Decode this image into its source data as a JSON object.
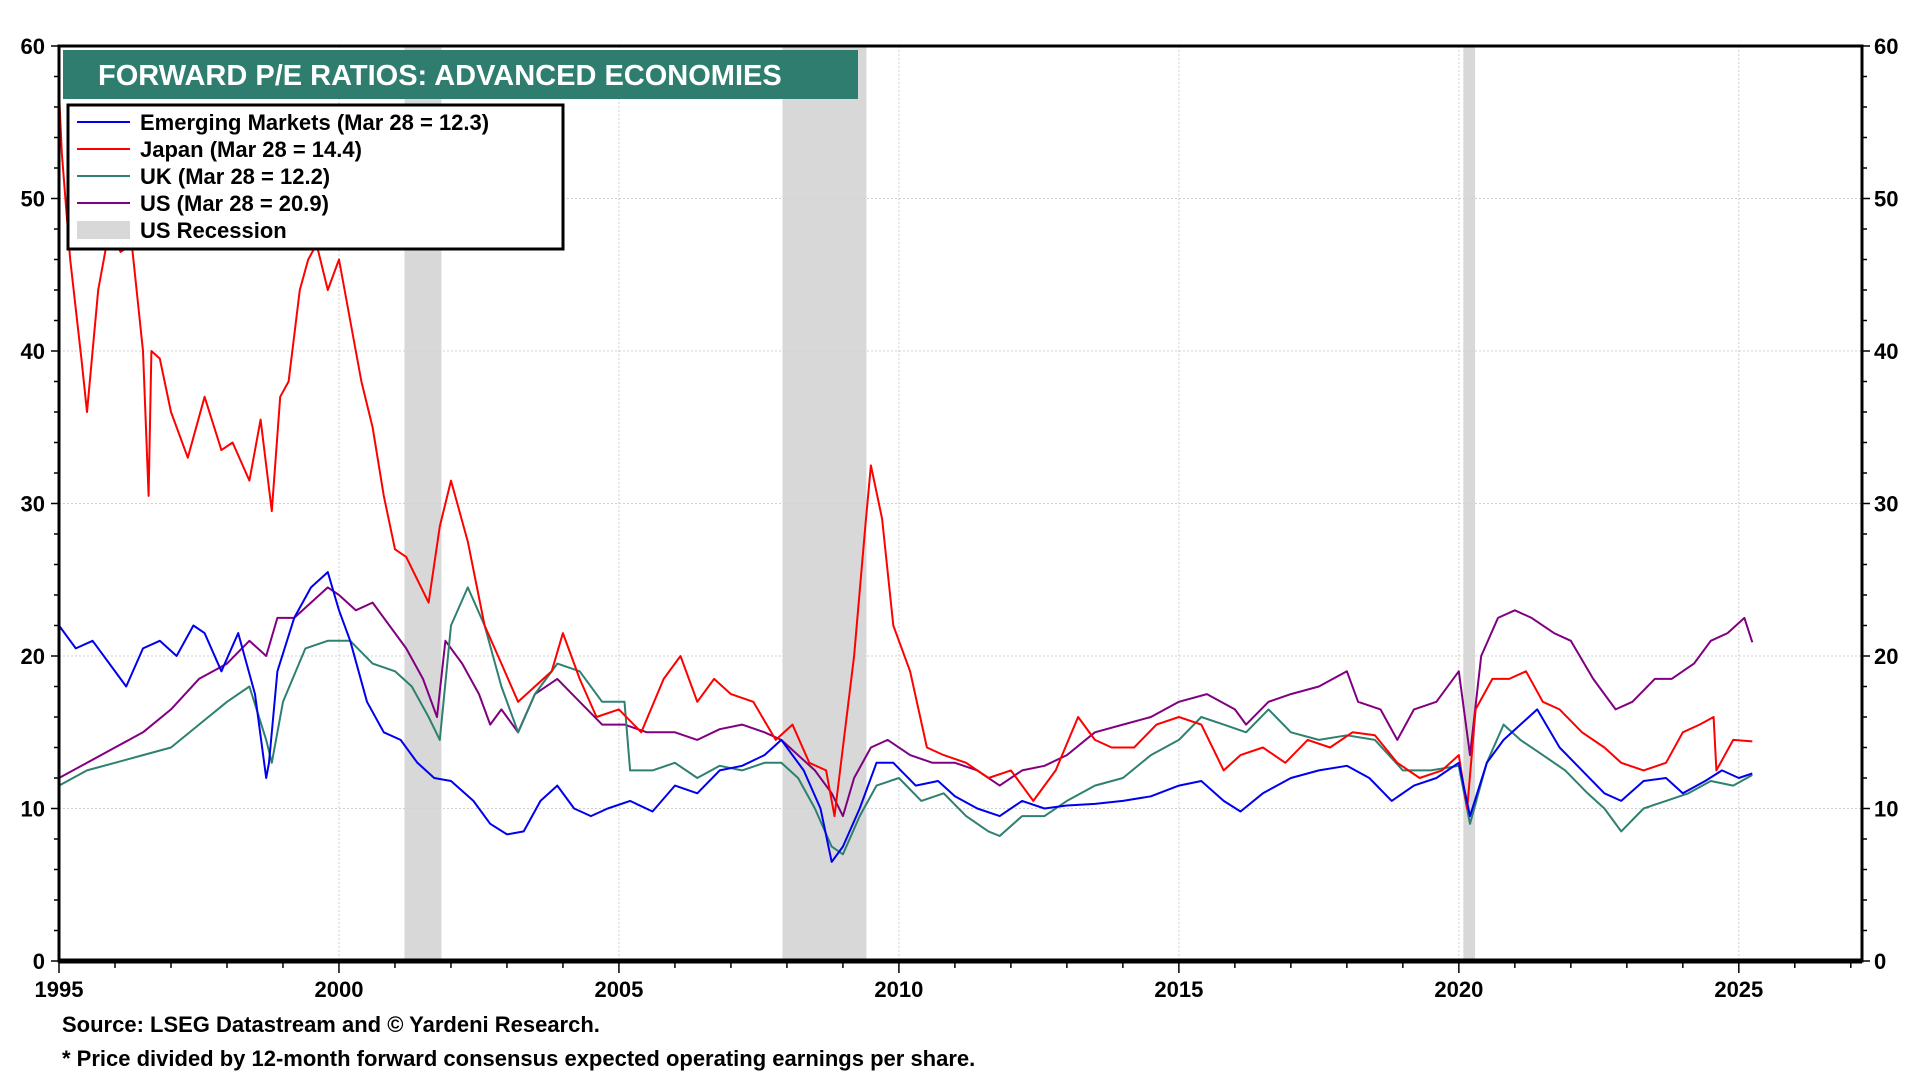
{
  "chart_data": {
    "type": "line",
    "title": "FORWARD P/E RATIOS: ADVANCED ECONOMIES",
    "xlabel": "",
    "ylabel": "",
    "xlim": [
      1995,
      2027.2
    ],
    "ylim": [
      0,
      60
    ],
    "y_ticks": [
      0,
      10,
      20,
      30,
      40,
      50,
      60
    ],
    "x_ticks": [
      1995,
      2000,
      2005,
      2010,
      2015,
      2020,
      2025
    ],
    "grid": true,
    "dual_y_axis": true,
    "legend_position": "top-left",
    "title_banner_color": "#2e7d6e",
    "recessions": [
      {
        "start": 2001.17,
        "end": 2001.83
      },
      {
        "start": 2007.92,
        "end": 2009.42
      },
      {
        "start": 2020.08,
        "end": 2020.29
      }
    ],
    "recession_label": "US Recession",
    "recession_color": "#d8d8d8",
    "series": [
      {
        "name": "Emerging Markets (Mar 28 = 12.3)",
        "color": "#0000ee",
        "x": [
          1995.0,
          1995.3,
          1995.6,
          1995.9,
          1996.2,
          1996.5,
          1996.8,
          1997.1,
          1997.4,
          1997.6,
          1997.9,
          1998.2,
          1998.5,
          1998.7,
          1998.75,
          1998.9,
          1999.2,
          1999.5,
          1999.8,
          2000.0,
          2000.2,
          2000.5,
          2000.8,
          2001.1,
          2001.4,
          2001.7,
          2002.0,
          2002.4,
          2002.7,
          2003.0,
          2003.3,
          2003.6,
          2003.9,
          2004.2,
          2004.5,
          2004.8,
          2005.2,
          2005.6,
          2006.0,
          2006.4,
          2006.8,
          2007.2,
          2007.6,
          2007.9,
          2008.3,
          2008.6,
          2008.8,
          2009.0,
          2009.3,
          2009.6,
          2009.9,
          2010.3,
          2010.7,
          2011.0,
          2011.4,
          2011.8,
          2012.2,
          2012.6,
          2013.0,
          2013.5,
          2014.0,
          2014.5,
          2015.0,
          2015.4,
          2015.8,
          2016.1,
          2016.5,
          2017.0,
          2017.5,
          2018.0,
          2018.4,
          2018.8,
          2019.2,
          2019.6,
          2020.0,
          2020.2,
          2020.5,
          2020.8,
          2021.1,
          2021.4,
          2021.8,
          2022.2,
          2022.6,
          2022.9,
          2023.3,
          2023.7,
          2024.0,
          2024.4,
          2024.7,
          2025.0,
          2025.24
        ],
        "values": [
          22.0,
          20.5,
          21.0,
          19.5,
          18.0,
          20.5,
          21.0,
          20.0,
          22.0,
          21.5,
          19.0,
          21.5,
          17.5,
          12.0,
          13.0,
          19.0,
          22.5,
          24.5,
          25.5,
          23.0,
          21.0,
          17.0,
          15.0,
          14.5,
          13.0,
          12.0,
          11.8,
          10.5,
          9.0,
          8.3,
          8.5,
          10.5,
          11.5,
          10.0,
          9.5,
          10.0,
          10.5,
          9.8,
          11.5,
          11.0,
          12.5,
          12.8,
          13.5,
          14.5,
          12.5,
          10.0,
          6.5,
          7.5,
          10.0,
          13.0,
          13.0,
          11.5,
          11.8,
          10.8,
          10.0,
          9.5,
          10.5,
          10.0,
          10.2,
          10.3,
          10.5,
          10.8,
          11.5,
          11.8,
          10.5,
          9.8,
          11.0,
          12.0,
          12.5,
          12.8,
          12.0,
          10.5,
          11.5,
          12.0,
          13.0,
          9.5,
          13.0,
          14.5,
          15.5,
          16.5,
          14.0,
          12.5,
          11.0,
          10.5,
          11.8,
          12.0,
          11.0,
          11.8,
          12.5,
          12.0,
          12.3
        ]
      },
      {
        "name": "Japan (Mar 28 = 14.4)",
        "color": "#ff0000",
        "x": [
          1995.0,
          1995.05,
          1995.2,
          1995.4,
          1995.5,
          1995.7,
          1995.9,
          1996.1,
          1996.3,
          1996.5,
          1996.6,
          1996.65,
          1996.8,
          1997.0,
          1997.3,
          1997.6,
          1997.9,
          1998.1,
          1998.4,
          1998.6,
          1998.8,
          1998.95,
          1999.1,
          1999.3,
          1999.45,
          1999.6,
          1999.8,
          2000.0,
          2000.2,
          2000.4,
          2000.6,
          2000.8,
          2001.0,
          2001.2,
          2001.4,
          2001.6,
          2001.8,
          2002.0,
          2002.3,
          2002.6,
          2002.9,
          2003.2,
          2003.5,
          2003.8,
          2004.0,
          2004.3,
          2004.6,
          2005.0,
          2005.4,
          2005.8,
          2006.1,
          2006.4,
          2006.7,
          2007.0,
          2007.4,
          2007.8,
          2008.1,
          2008.4,
          2008.7,
          2008.85,
          2009.0,
          2009.2,
          2009.4,
          2009.5,
          2009.7,
          2009.9,
          2010.2,
          2010.5,
          2010.8,
          2011.2,
          2011.6,
          2012.0,
          2012.4,
          2012.8,
          2013.2,
          2013.5,
          2013.8,
          2014.2,
          2014.6,
          2015.0,
          2015.4,
          2015.8,
          2016.1,
          2016.5,
          2016.9,
          2017.3,
          2017.7,
          2018.1,
          2018.5,
          2018.9,
          2019.3,
          2019.7,
          2020.0,
          2020.15,
          2020.3,
          2020.6,
          2020.9,
          2021.2,
          2021.5,
          2021.8,
          2022.2,
          2022.6,
          2022.9,
          2023.3,
          2023.7,
          2024.0,
          2024.3,
          2024.55,
          2024.6,
          2024.9,
          2025.24
        ],
        "values": [
          57.0,
          53.0,
          46.0,
          39.5,
          36.0,
          44.0,
          48.0,
          46.5,
          47.0,
          40.0,
          30.5,
          40.0,
          39.5,
          36.0,
          33.0,
          37.0,
          33.5,
          34.0,
          31.5,
          35.5,
          29.5,
          37.0,
          38.0,
          44.0,
          46.0,
          47.0,
          44.0,
          46.0,
          42.0,
          38.0,
          35.0,
          30.5,
          27.0,
          26.5,
          25.0,
          23.5,
          28.5,
          31.5,
          27.5,
          22.0,
          19.5,
          17.0,
          18.0,
          19.0,
          21.5,
          18.5,
          16.0,
          16.5,
          15.0,
          18.5,
          20.0,
          17.0,
          18.5,
          17.5,
          17.0,
          14.5,
          15.5,
          13.0,
          12.5,
          9.5,
          14.0,
          20.0,
          28.5,
          32.5,
          29.0,
          22.0,
          19.0,
          14.0,
          13.5,
          13.0,
          12.0,
          12.5,
          10.5,
          12.5,
          16.0,
          14.5,
          14.0,
          14.0,
          15.5,
          16.0,
          15.5,
          12.5,
          13.5,
          14.0,
          13.0,
          14.5,
          14.0,
          15.0,
          14.8,
          13.0,
          12.0,
          12.5,
          13.5,
          10.0,
          16.5,
          18.5,
          18.5,
          19.0,
          17.0,
          16.5,
          15.0,
          14.0,
          13.0,
          12.5,
          13.0,
          15.0,
          15.5,
          16.0,
          12.5,
          14.5,
          14.4
        ]
      },
      {
        "name": "UK (Mar 28 = 12.2)",
        "color": "#2e8070",
        "x": [
          1995.0,
          1995.5,
          1996.0,
          1996.5,
          1997.0,
          1997.5,
          1998.0,
          1998.4,
          1998.7,
          1998.8,
          1999.0,
          1999.4,
          1999.8,
          2000.2,
          2000.6,
          2001.0,
          2001.3,
          2001.6,
          2001.8,
          2002.0,
          2002.3,
          2002.6,
          2002.9,
          2003.2,
          2003.5,
          2003.9,
          2004.3,
          2004.7,
          2005.1,
          2005.2,
          2005.6,
          2006.0,
          2006.4,
          2006.8,
          2007.2,
          2007.6,
          2007.9,
          2008.2,
          2008.5,
          2008.8,
          2009.0,
          2009.3,
          2009.6,
          2010.0,
          2010.4,
          2010.8,
          2011.2,
          2011.6,
          2011.8,
          2012.2,
          2012.6,
          2013.0,
          2013.5,
          2014.0,
          2014.5,
          2015.0,
          2015.4,
          2015.8,
          2016.2,
          2016.6,
          2017.0,
          2017.5,
          2018.0,
          2018.5,
          2019.0,
          2019.5,
          2020.0,
          2020.2,
          2020.5,
          2020.8,
          2021.1,
          2021.5,
          2021.9,
          2022.3,
          2022.6,
          2022.9,
          2023.3,
          2023.7,
          2024.1,
          2024.5,
          2024.9,
          2025.24
        ],
        "values": [
          11.5,
          12.5,
          13.0,
          13.5,
          14.0,
          15.5,
          17.0,
          18.0,
          14.5,
          13.0,
          17.0,
          20.5,
          21.0,
          21.0,
          19.5,
          19.0,
          18.0,
          16.0,
          14.5,
          22.0,
          24.5,
          22.0,
          18.0,
          15.0,
          17.5,
          19.5,
          19.0,
          17.0,
          17.0,
          12.5,
          12.5,
          13.0,
          12.0,
          12.8,
          12.5,
          13.0,
          13.0,
          12.0,
          10.0,
          7.5,
          7.0,
          9.5,
          11.5,
          12.0,
          10.5,
          11.0,
          9.5,
          8.5,
          8.2,
          9.5,
          9.5,
          10.5,
          11.5,
          12.0,
          13.5,
          14.5,
          16.0,
          15.5,
          15.0,
          16.5,
          15.0,
          14.5,
          14.8,
          14.5,
          12.5,
          12.5,
          12.8,
          9.0,
          13.0,
          15.5,
          14.5,
          13.5,
          12.5,
          11.0,
          10.0,
          8.5,
          10.0,
          10.5,
          11.0,
          11.8,
          11.5,
          12.2
        ]
      },
      {
        "name": "US (Mar 28 = 20.9)",
        "color": "#800080",
        "x": [
          1995.0,
          1995.5,
          1996.0,
          1996.5,
          1997.0,
          1997.5,
          1998.0,
          1998.4,
          1998.7,
          1998.9,
          1999.2,
          1999.5,
          1999.8,
          2000.0,
          2000.3,
          2000.6,
          2000.9,
          2001.2,
          2001.5,
          2001.75,
          2001.9,
          2002.2,
          2002.5,
          2002.7,
          2002.9,
          2003.2,
          2003.5,
          2003.9,
          2004.3,
          2004.7,
          2005.1,
          2005.5,
          2006.0,
          2006.4,
          2006.8,
          2007.2,
          2007.6,
          2007.9,
          2008.2,
          2008.5,
          2008.8,
          2009.0,
          2009.2,
          2009.5,
          2009.8,
          2010.2,
          2010.6,
          2011.0,
          2011.4,
          2011.8,
          2012.2,
          2012.6,
          2013.0,
          2013.5,
          2014.0,
          2014.5,
          2015.0,
          2015.5,
          2016.0,
          2016.2,
          2016.6,
          2017.0,
          2017.5,
          2018.0,
          2018.2,
          2018.6,
          2018.9,
          2019.2,
          2019.6,
          2020.0,
          2020.2,
          2020.4,
          2020.7,
          2021.0,
          2021.3,
          2021.7,
          2022.0,
          2022.4,
          2022.8,
          2023.1,
          2023.5,
          2023.8,
          2024.2,
          2024.5,
          2024.8,
          2025.1,
          2025.24
        ],
        "values": [
          12.0,
          13.0,
          14.0,
          15.0,
          16.5,
          18.5,
          19.5,
          21.0,
          20.0,
          22.5,
          22.5,
          23.5,
          24.5,
          24.0,
          23.0,
          23.5,
          22.0,
          20.5,
          18.5,
          16.0,
          21.0,
          19.5,
          17.5,
          15.5,
          16.5,
          15.0,
          17.5,
          18.5,
          17.0,
          15.5,
          15.5,
          15.0,
          15.0,
          14.5,
          15.2,
          15.5,
          15.0,
          14.5,
          13.5,
          12.5,
          11.0,
          9.5,
          12.0,
          14.0,
          14.5,
          13.5,
          13.0,
          13.0,
          12.5,
          11.5,
          12.5,
          12.8,
          13.5,
          15.0,
          15.5,
          16.0,
          17.0,
          17.5,
          16.5,
          15.5,
          17.0,
          17.5,
          18.0,
          19.0,
          17.0,
          16.5,
          14.5,
          16.5,
          17.0,
          19.0,
          13.5,
          20.0,
          22.5,
          23.0,
          22.5,
          21.5,
          21.0,
          18.5,
          16.5,
          17.0,
          18.5,
          18.5,
          19.5,
          21.0,
          21.5,
          22.5,
          20.9
        ]
      }
    ]
  },
  "footer": {
    "source": "Source: LSEG Datastream and © Yardeni Research.",
    "note": "* Price divided by 12-month forward consensus expected operating earnings per share."
  }
}
